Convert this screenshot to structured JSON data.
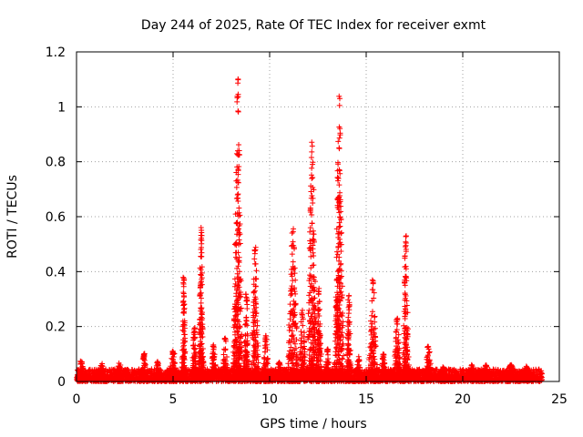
{
  "chart_data": {
    "type": "scatter",
    "title": "Day 244 of 2025, Rate Of TEC Index for receiver exmt",
    "xlabel": "GPS time / hours",
    "ylabel": "ROTI / TECUs",
    "xlim": [
      0,
      25
    ],
    "ylim": [
      0,
      1.2
    ],
    "xticks": [
      0,
      5,
      10,
      15,
      20,
      25
    ],
    "yticks": [
      0,
      0.2,
      0.4,
      0.6,
      0.8,
      1,
      1.2
    ],
    "xtick_labels": [
      "0",
      "5",
      "10",
      "15",
      "20",
      "25"
    ],
    "ytick_labels": [
      "0",
      "0.2",
      "0.4",
      "0.6",
      "0.8",
      "1",
      "1.2"
    ],
    "grid": true,
    "marker": "plus",
    "color": "#ff0000",
    "baseline": {
      "x_start": 0,
      "x_end": 24.1,
      "y_min": 0.0,
      "y_max": 0.045
    },
    "bursts": [
      {
        "center": 0.25,
        "width": 0.3,
        "peak": 0.07
      },
      {
        "center": 1.3,
        "width": 0.3,
        "peak": 0.06
      },
      {
        "center": 2.2,
        "width": 0.3,
        "peak": 0.06
      },
      {
        "center": 3.5,
        "width": 0.25,
        "peak": 0.1
      },
      {
        "center": 4.2,
        "width": 0.2,
        "peak": 0.07
      },
      {
        "center": 5.0,
        "width": 0.4,
        "peak": 0.11
      },
      {
        "center": 5.55,
        "width": 0.15,
        "peak": 0.38
      },
      {
        "center": 6.1,
        "width": 0.2,
        "peak": 0.2
      },
      {
        "center": 6.45,
        "width": 0.2,
        "peak": 0.57
      },
      {
        "center": 7.1,
        "width": 0.2,
        "peak": 0.13
      },
      {
        "center": 7.7,
        "width": 0.25,
        "peak": 0.16
      },
      {
        "center": 8.35,
        "width": 0.35,
        "peak": 1.1
      },
      {
        "center": 8.8,
        "width": 0.25,
        "peak": 0.32
      },
      {
        "center": 9.25,
        "width": 0.3,
        "peak": 0.5
      },
      {
        "center": 9.8,
        "width": 0.25,
        "peak": 0.17
      },
      {
        "center": 10.5,
        "width": 0.25,
        "peak": 0.07
      },
      {
        "center": 11.2,
        "width": 0.45,
        "peak": 0.56
      },
      {
        "center": 11.7,
        "width": 0.3,
        "peak": 0.26
      },
      {
        "center": 12.2,
        "width": 0.4,
        "peak": 0.88
      },
      {
        "center": 12.55,
        "width": 0.25,
        "peak": 0.33
      },
      {
        "center": 13.0,
        "width": 0.2,
        "peak": 0.12
      },
      {
        "center": 13.6,
        "width": 0.35,
        "peak": 1.04
      },
      {
        "center": 14.1,
        "width": 0.2,
        "peak": 0.3
      },
      {
        "center": 14.6,
        "width": 0.25,
        "peak": 0.08
      },
      {
        "center": 15.35,
        "width": 0.35,
        "peak": 0.37
      },
      {
        "center": 15.9,
        "width": 0.2,
        "peak": 0.1
      },
      {
        "center": 16.6,
        "width": 0.3,
        "peak": 0.23
      },
      {
        "center": 17.05,
        "width": 0.25,
        "peak": 0.54
      },
      {
        "center": 18.2,
        "width": 0.35,
        "peak": 0.13
      },
      {
        "center": 19.0,
        "width": 0.3,
        "peak": 0.05
      },
      {
        "center": 20.5,
        "width": 0.3,
        "peak": 0.05
      },
      {
        "center": 21.2,
        "width": 0.3,
        "peak": 0.06
      },
      {
        "center": 22.5,
        "width": 0.3,
        "peak": 0.06
      },
      {
        "center": 23.3,
        "width": 0.3,
        "peak": 0.05
      }
    ]
  }
}
